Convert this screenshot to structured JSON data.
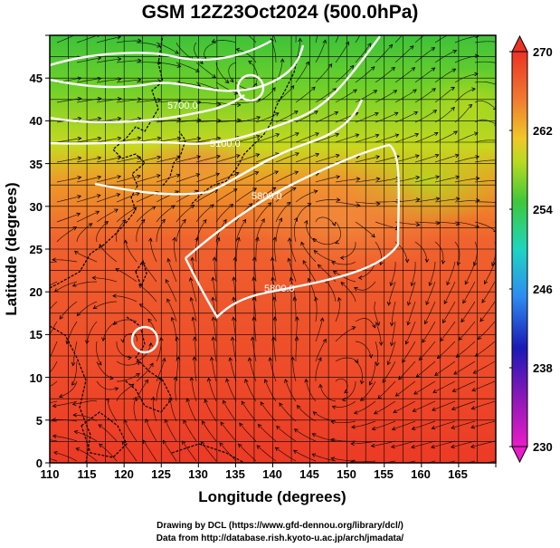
{
  "title": "GSM 12Z23Oct2024 (500.0hPa)",
  "map": {
    "x_label": "Longitude (degrees)",
    "y_label": "Latitude  (degrees)",
    "lon_range": [
      110,
      170
    ],
    "lat_range": [
      0,
      50
    ],
    "lon_ticks": [
      "110",
      "115",
      "120",
      "125",
      "130",
      "135",
      "140",
      "145",
      "150",
      "155",
      "160",
      "165"
    ],
    "lat_ticks": [
      "0",
      "5",
      "10",
      "15",
      "20",
      "25",
      "30",
      "35",
      "40",
      "45"
    ],
    "contour_labels": [
      "5700.0",
      "5100.0",
      "5800.0",
      "5800.0"
    ]
  },
  "colorbar": {
    "ticks": [
      "230",
      "238",
      "246",
      "254",
      "262",
      "270"
    ],
    "min": 230,
    "max": 270
  },
  "credits": {
    "line1": "Drawing by DCL (https://www.gfd-dennou.org/library/dcl/)",
    "line2": "Data from http://database.rish.kyoto-u.ac.jp/arch/jmadata/"
  }
}
